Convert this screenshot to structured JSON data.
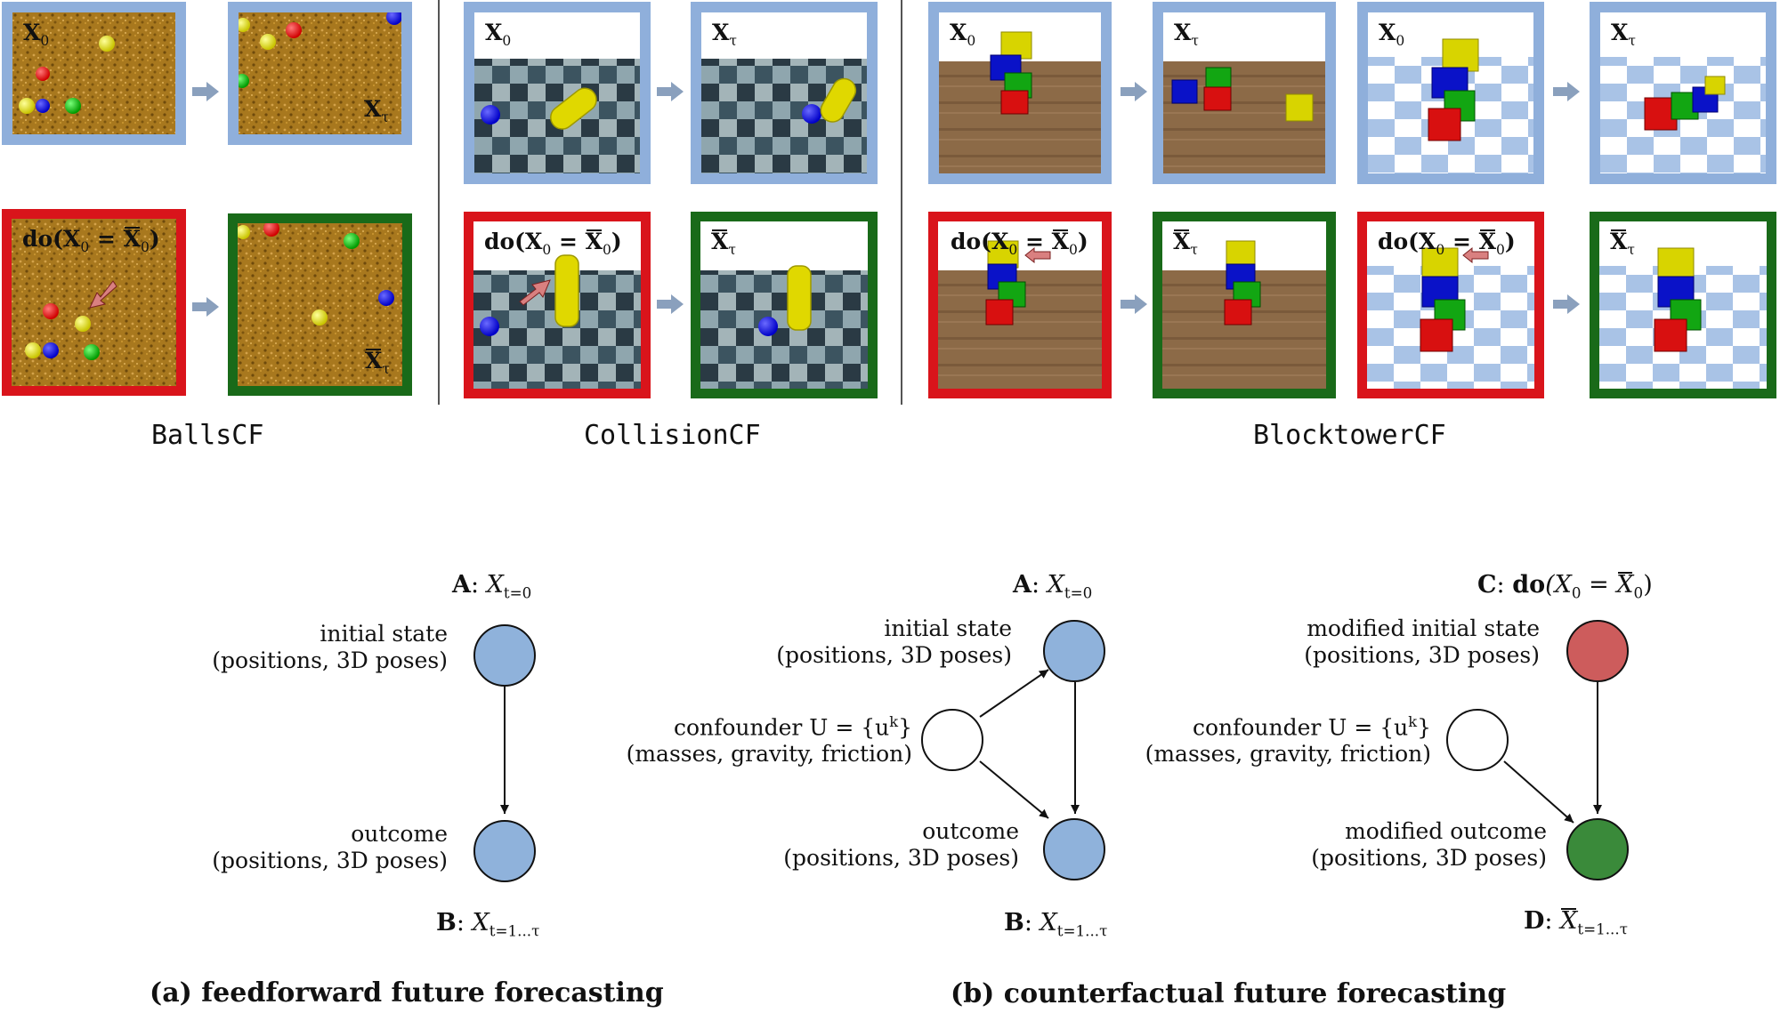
{
  "labels": {
    "x0": "X",
    "x0_sub": "0",
    "xtau": "X",
    "xtau_sub": "τ",
    "do_prefix": "do(X",
    "do_sub": "0",
    "do_mid": " = ",
    "do_bar_x": "X",
    "do_bar_sub": "0",
    "do_close": ")",
    "bar_x": "X",
    "bar_sub": "τ"
  },
  "datasets": {
    "balls": "BallsCF",
    "collision": "CollisionCF",
    "blocktower": "BlocktowerCF"
  },
  "colors": {
    "observed_border": "#8fafdb",
    "intervention_border": "#d9141b",
    "counterfactual_border": "#196a19",
    "node_blue": "#8fb2db",
    "node_red": "#cd5c5c",
    "node_green": "#3a8a3a"
  },
  "diagram_a": {
    "top_label_letter": "A",
    "top_label_var": "X",
    "top_label_sub": "t=0",
    "initial_line1": "initial state",
    "initial_line2": "(positions, 3D poses)",
    "outcome_line1": "outcome",
    "outcome_line2": "(positions, 3D poses)",
    "bottom_label_letter": "B",
    "bottom_label_var": "X",
    "bottom_label_sub": "t=1...τ",
    "caption": "(a) feedforward future forecasting"
  },
  "diagram_b": {
    "a_letter": "A",
    "a_var": "X",
    "a_sub": "t=0",
    "initial_line1": "initial state",
    "initial_line2": "(positions, 3D poses)",
    "confounder_line1": "confounder U = {u",
    "confounder_sup": "k",
    "confounder_close": "}",
    "confounder_line2": "(masses, gravity, friction)",
    "outcome_line1": "outcome",
    "outcome_line2": "(positions, 3D poses)",
    "b_letter": "B",
    "b_var": "X",
    "b_sub": "t=1...τ",
    "c_letter": "C",
    "c_do": "do",
    "c_expr_open": "(X",
    "c_expr_sub": "0",
    "c_expr_mid": " = ",
    "c_expr_bar": "X",
    "c_expr_bar_sub": "0",
    "c_expr_close": ")",
    "mod_initial_line1": "modified initial state",
    "mod_initial_line2": "(positions, 3D poses)",
    "confounder2_line1": "confounder U = {u",
    "confounder2_sup": "k",
    "confounder2_close": "}",
    "confounder2_line2": "(masses, gravity, friction)",
    "mod_outcome_line1": "modified outcome",
    "mod_outcome_line2": "(positions, 3D poses)",
    "d_letter": "D",
    "d_var": "X",
    "d_sub": "t=1...τ",
    "caption": "(b) counterfactual future forecasting"
  }
}
